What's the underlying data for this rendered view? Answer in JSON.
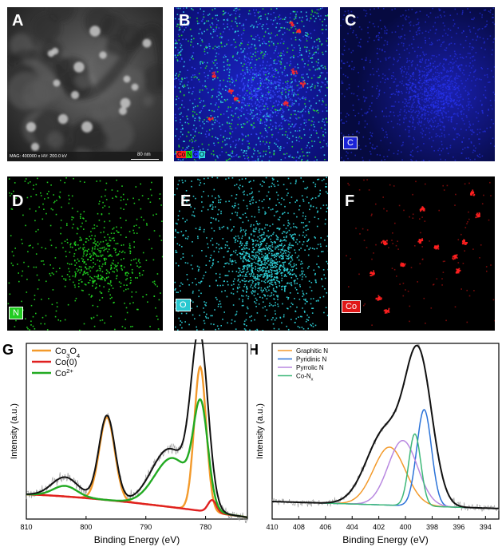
{
  "panels": {
    "A": {
      "label": "A",
      "mag": "MAG: 400000 x  HV: 200.0 kV",
      "scale": "80 nm"
    },
    "B": {
      "label": "B",
      "legend": [
        "Co",
        "N",
        "C",
        "O"
      ]
    },
    "C": {
      "label": "C",
      "tag": "C"
    },
    "D": {
      "label": "D",
      "tag": "N"
    },
    "E": {
      "label": "E",
      "tag": "O"
    },
    "F": {
      "label": "F",
      "tag": "Co"
    }
  },
  "colors": {
    "C": "#2030ff",
    "N": "#22dd22",
    "O": "#30d8e0",
    "Co": "#ff2020",
    "orange": "#f39a2b",
    "red": "#e02020",
    "green": "#22aa22",
    "blue": "#2a72d8",
    "purple": "#b888e0",
    "teal": "#3cb878",
    "black": "#111111"
  },
  "chart_data": [
    {
      "type": "line",
      "panel": "G",
      "xlabel": "Binding Energy (eV)",
      "ylabel": "Intensity (a.u.)",
      "xlim": [
        810,
        773
      ],
      "xticks": [
        810,
        800,
        790,
        780
      ],
      "legend_position": "top-left",
      "series": [
        {
          "name": "Co3O4",
          "label_main": "Co",
          "label_sub": "3",
          "label_main2": "O",
          "label_sub2": "4",
          "color_key": "orange",
          "peaks": [
            {
              "center": 796.5,
              "height": 0.47,
              "width": 1.3
            },
            {
              "center": 780.9,
              "height": 0.82,
              "width": 1.0
            }
          ]
        },
        {
          "name": "Co(0)",
          "label_main": "Co(0)",
          "color_key": "red",
          "peaks": [
            {
              "center": 778.9,
              "height": 0.07,
              "width": 0.7
            }
          ]
        },
        {
          "name": "Co2+",
          "label_main": "Co",
          "label_sup": "2+",
          "color_key": "green",
          "peaks": [
            {
              "center": 803.5,
              "height": 0.06,
              "width": 2.0
            },
            {
              "center": 785.5,
              "height": 0.28,
              "width": 3.0
            },
            {
              "center": 780.8,
              "height": 0.55,
              "width": 1.2
            }
          ]
        }
      ],
      "envelope": {
        "color_key": "black",
        "peaks": [
          {
            "center": 803.5,
            "height": 0.11,
            "width": 2.2
          },
          {
            "center": 796.5,
            "height": 0.48,
            "width": 1.35
          },
          {
            "center": 786.0,
            "height": 0.33,
            "width": 3.0
          },
          {
            "center": 781.0,
            "height": 0.95,
            "width": 1.4
          }
        ]
      }
    },
    {
      "type": "line",
      "panel": "H",
      "xlabel": "Binding Energy (eV)",
      "ylabel": "Intensity (a.u.)",
      "xlim": [
        410,
        393
      ],
      "xticks": [
        410,
        408,
        406,
        404,
        402,
        400,
        398,
        396,
        394
      ],
      "legend_position": "top-left",
      "series": [
        {
          "name": "Graphitic N",
          "label_main": "Graphitic N",
          "color_key": "orange",
          "peaks": [
            {
              "center": 401.2,
              "height": 0.33,
              "width": 1.2
            }
          ]
        },
        {
          "name": "Pyridinic N",
          "label_main": "Pyridinic N",
          "color_key": "blue",
          "peaks": [
            {
              "center": 398.6,
              "height": 0.55,
              "width": 0.55
            }
          ]
        },
        {
          "name": "Pyrrolic N",
          "label_main": "Pyrrolic N",
          "color_key": "purple",
          "peaks": [
            {
              "center": 400.2,
              "height": 0.37,
              "width": 1.1
            }
          ]
        },
        {
          "name": "Co-Nx",
          "label_main": "Co-N",
          "label_sub": "x",
          "color_key": "teal",
          "peaks": [
            {
              "center": 399.3,
              "height": 0.41,
              "width": 0.45
            }
          ]
        }
      ],
      "envelope": {
        "color_key": "black",
        "peaks": [
          {
            "center": 401.5,
            "height": 0.42,
            "width": 1.4
          },
          {
            "center": 399.0,
            "height": 0.82,
            "width": 1.0
          }
        ]
      }
    }
  ]
}
